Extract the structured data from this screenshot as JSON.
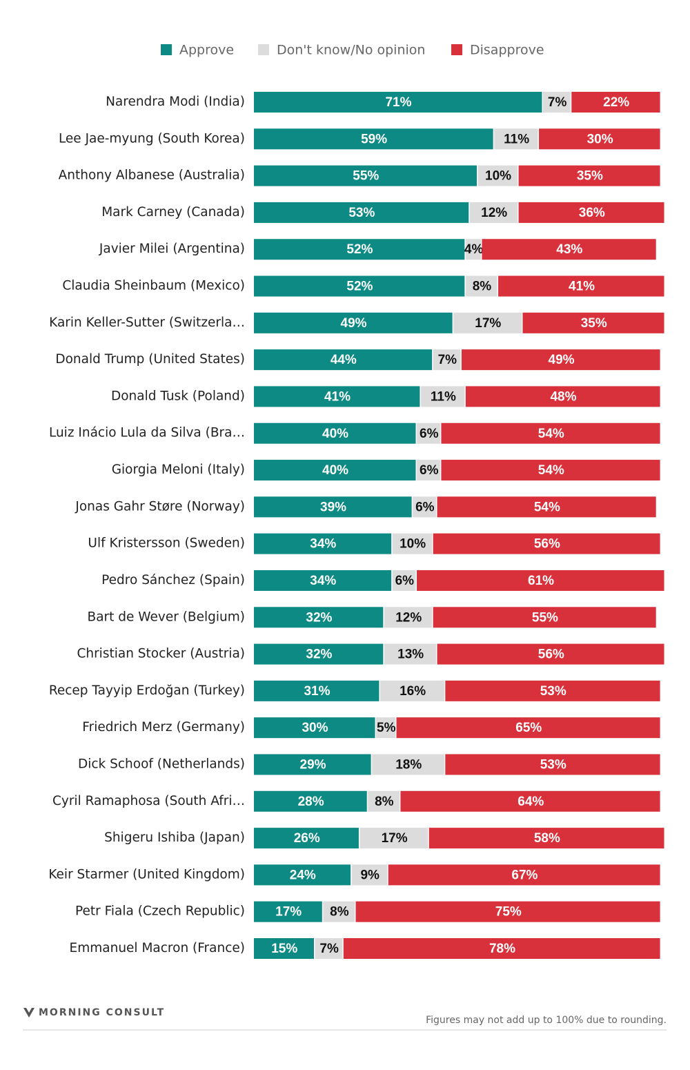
{
  "chart_data": {
    "type": "bar",
    "orientation": "horizontal",
    "stacked": true,
    "categories": [
      "Narendra Modi (India)",
      "Lee Jae-myung (South Korea)",
      "Anthony Albanese (Australia)",
      "Mark Carney (Canada)",
      "Javier Milei (Argentina)",
      "Claudia Sheinbaum (Mexico)",
      "Karin Keller-Sutter (Switzerla…",
      "Donald Trump (United States)",
      "Donald Tusk (Poland)",
      "Luiz Inácio Lula da Silva (Bra…",
      "Giorgia Meloni (Italy)",
      "Jonas Gahr Støre (Norway)",
      "Ulf Kristersson (Sweden)",
      "Pedro Sánchez (Spain)",
      "Bart de Wever (Belgium)",
      "Christian Stocker (Austria)",
      "Recep Tayyip Erdoğan (Turkey)",
      "Friedrich Merz (Germany)",
      "Dick Schoof (Netherlands)",
      "Cyril Ramaphosa (South Afri…",
      "Shigeru Ishiba (Japan)",
      "Keir Starmer (United Kingdom)",
      "Petr Fiala (Czech Republic)",
      "Emmanuel Macron (France)"
    ],
    "series": [
      {
        "name": "Approve",
        "color": "#0e8a84",
        "values": [
          71,
          59,
          55,
          53,
          52,
          52,
          49,
          44,
          41,
          40,
          40,
          39,
          34,
          34,
          32,
          32,
          31,
          30,
          29,
          28,
          26,
          24,
          17,
          15
        ],
        "value_labels": [
          "71%",
          "59%",
          "55%",
          "53%",
          "52%",
          "52%",
          "49%",
          "44%",
          "41%",
          "40%",
          "40%",
          "39%",
          "34%",
          "34%",
          "32%",
          "32%",
          "31%",
          "30%",
          "29%",
          "28%",
          "26%",
          "24%",
          "17%",
          "15%"
        ]
      },
      {
        "name": "Don't know/No opinion",
        "color": "#dcdcdc",
        "values": [
          7,
          11,
          10,
          12,
          4,
          8,
          17,
          7,
          11,
          6,
          6,
          6,
          10,
          6,
          12,
          13,
          16,
          5,
          18,
          8,
          17,
          9,
          8,
          7
        ],
        "value_labels": [
          "7%",
          "11%",
          "10%",
          "12%",
          "4%",
          "8%",
          "17%",
          "7%",
          "11%",
          "6%",
          "6%",
          "6%",
          "10%",
          "6%",
          "12%",
          "13%",
          "16%",
          "5%",
          "18%",
          "8%",
          "17%",
          "9%",
          "8%",
          "7%"
        ]
      },
      {
        "name": "Disapprove",
        "color": "#d8313b",
        "values": [
          22,
          30,
          35,
          36,
          43,
          41,
          35,
          49,
          48,
          54,
          54,
          54,
          56,
          61,
          55,
          56,
          53,
          65,
          53,
          64,
          58,
          67,
          75,
          78
        ],
        "value_labels": [
          "22%",
          "30%",
          "35%",
          "36%",
          "43%",
          "41%",
          "35%",
          "49%",
          "48%",
          "54%",
          "54%",
          "54%",
          "56%",
          "61%",
          "55%",
          "56%",
          "53%",
          "65%",
          "53%",
          "64%",
          "58%",
          "67%",
          "75%",
          "78%"
        ]
      }
    ],
    "source": "MORNING CONSULT",
    "note": "Figures may not add up to 100% due to rounding."
  }
}
